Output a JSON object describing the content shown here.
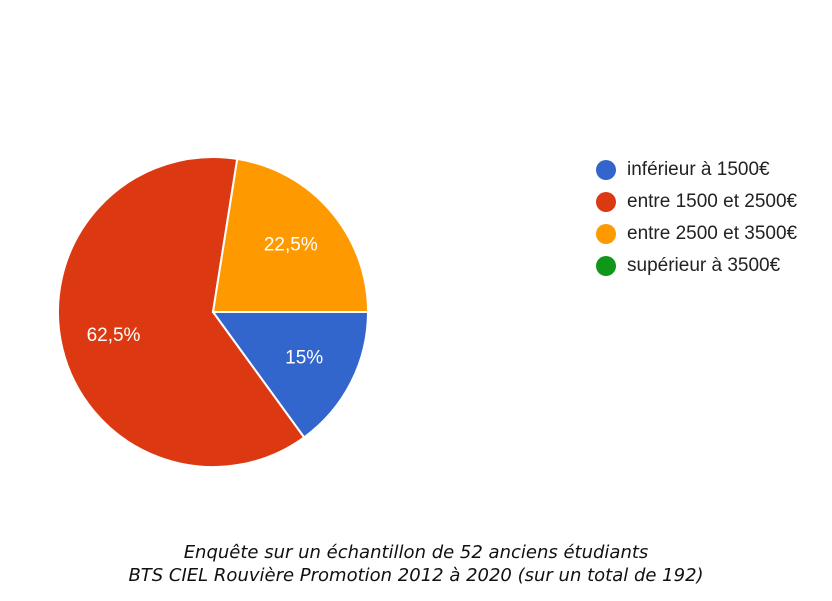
{
  "chart_data": {
    "type": "pie",
    "slices": [
      {
        "label": "inférieur à 1500€",
        "value": 15,
        "display": "15%",
        "color": "#3366cc"
      },
      {
        "label": "entre 1500 et 2500€",
        "value": 62.5,
        "display": "62,5%",
        "color": "#dc3912"
      },
      {
        "label": "entre 2500 et 3500€",
        "value": 22.5,
        "display": "22,5%",
        "color": "#ff9900"
      },
      {
        "label": "supérieur à 3500€",
        "value": 0,
        "display": "",
        "color": "#109618"
      }
    ],
    "legend_position": "right"
  },
  "caption": {
    "line1": "Enquête sur un échantillon de 52 anciens étudiants",
    "line2": "BTS CIEL Rouvière Promotion 2012 à 2020 (sur un total de 192)"
  }
}
